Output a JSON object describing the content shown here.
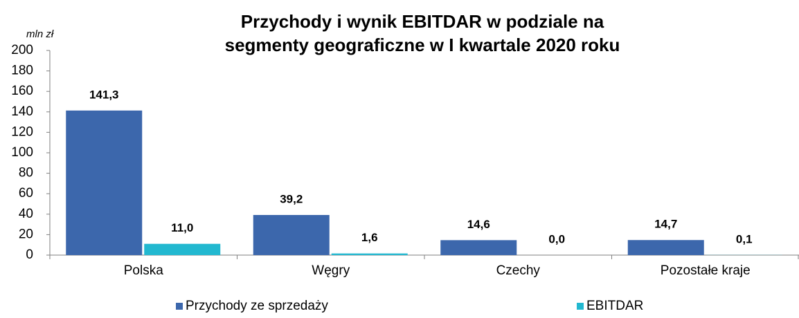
{
  "chart_data": {
    "type": "bar",
    "title_lines": [
      "Przychody i wynik EBITDAR w podziale na",
      "segmenty geograficzne w I kwartale 2020 roku"
    ],
    "y_label": "mln zł",
    "categories": [
      "Polska",
      "Węgry",
      "Czechy",
      "Pozostałe kraje"
    ],
    "series": [
      {
        "name": "Przychody ze sprzedaży",
        "color": "#3c67ac",
        "values": [
          141.3,
          39.2,
          14.6,
          14.7
        ],
        "value_labels": [
          "141,3",
          "39,2",
          "14,6",
          "14,7"
        ]
      },
      {
        "name": "EBITDAR",
        "color": "#22b8d0",
        "values": [
          11.0,
          1.6,
          0.0,
          0.1
        ],
        "value_labels": [
          "11,0",
          "1,6",
          "0,0",
          "0,1"
        ]
      }
    ],
    "ylim": [
      0,
      200
    ],
    "yticks": [
      0,
      20,
      40,
      60,
      80,
      100,
      120,
      140,
      160,
      180,
      200
    ],
    "grid": false
  }
}
